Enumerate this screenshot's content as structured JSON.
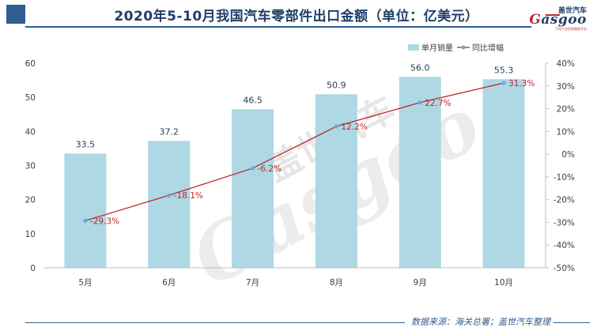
{
  "header": {
    "title": "2020年5-10月我国汽车零部件出口金额（单位：亿美元）"
  },
  "logo": {
    "cn": "盖世汽车",
    "en_prefix": "G",
    "en_rest": "asgoo",
    "sub": "汽车产业信息服务平台"
  },
  "watermark": {
    "cn": "盖世汽车",
    "en": "Gasgoo"
  },
  "footer": {
    "source": "数据来源：海关总署；盖世汽车整理"
  },
  "colors": {
    "bar": "#add8e4",
    "line": "#c0272d",
    "marker": "#6aa8dc",
    "accent": "#2f5d8f"
  },
  "chart_data": {
    "type": "bar",
    "categories": [
      "5月",
      "6月",
      "7月",
      "8月",
      "9月",
      "10月"
    ],
    "series": [
      {
        "name": "单月销量",
        "type": "bar",
        "axis": "left",
        "values": [
          33.5,
          37.2,
          46.5,
          50.9,
          56.0,
          55.3
        ],
        "labels": [
          "33.5",
          "37.2",
          "46.5",
          "50.9",
          "56.0",
          "55.3"
        ]
      },
      {
        "name": "同比增幅",
        "type": "line",
        "axis": "right",
        "values": [
          -29.3,
          -18.1,
          -6.2,
          12.2,
          22.7,
          31.3
        ],
        "labels": [
          "-29.3%",
          "-18.1%",
          "-6.2%",
          "12.2%",
          "22.7%",
          "31.3%"
        ]
      }
    ],
    "y_left": {
      "lim": [
        0,
        60
      ],
      "ticks": [
        0,
        10,
        20,
        30,
        40,
        50,
        60
      ],
      "tick_labels": [
        "0",
        "10",
        "20",
        "30",
        "40",
        "50",
        "60"
      ]
    },
    "y_right": {
      "lim": [
        -50,
        40
      ],
      "ticks": [
        -50,
        -40,
        -30,
        -20,
        -10,
        0,
        10,
        20,
        30,
        40
      ],
      "tick_labels": [
        "-50%",
        "-40%",
        "-30%",
        "-20%",
        "-10%",
        "0%",
        "10%",
        "20%",
        "30%",
        "40%"
      ]
    },
    "legend_position": "top-right",
    "grid": false
  }
}
